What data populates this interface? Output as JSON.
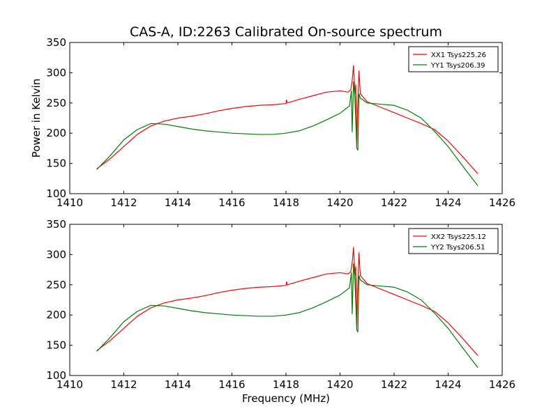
{
  "figure": {
    "title": "CAS-A, ID:2263 Calibrated On-source spectrum"
  },
  "colors": {
    "xx": "#ff0000",
    "yy": "#007f00"
  },
  "chart_data": [
    {
      "type": "line",
      "title": "CAS-A, ID:2263 Calibrated On-source spectrum",
      "xlabel": "",
      "ylabel": "Power in Kelvin",
      "xlim": [
        1410,
        1426
      ],
      "ylim": [
        100,
        350
      ],
      "xticks": [
        "1410",
        "1412",
        "1414",
        "1416",
        "1418",
        "1420",
        "1422",
        "1424",
        "1426"
      ],
      "yticks": [
        "100",
        "150",
        "200",
        "250",
        "300",
        "350"
      ],
      "legend_position": "top-right",
      "grid": false,
      "series": [
        {
          "name": "XX1 Tsys225.26",
          "color": "#ff0000",
          "points": [
            [
              1411.0,
              141
            ],
            [
              1411.5,
              158
            ],
            [
              1412.0,
              178
            ],
            [
              1412.5,
              198
            ],
            [
              1413.0,
              212
            ],
            [
              1413.5,
              220
            ],
            [
              1414.0,
              225
            ],
            [
              1414.5,
              228
            ],
            [
              1415.0,
              232
            ],
            [
              1415.5,
              237
            ],
            [
              1416.0,
              241
            ],
            [
              1416.5,
              244
            ],
            [
              1417.0,
              246
            ],
            [
              1417.5,
              247
            ],
            [
              1418.0,
              249
            ],
            [
              1418.02,
              255
            ],
            [
              1418.05,
              250
            ],
            [
              1418.5,
              256
            ],
            [
              1419.0,
              262
            ],
            [
              1419.5,
              268
            ],
            [
              1420.0,
              270
            ],
            [
              1420.3,
              268
            ],
            [
              1420.4,
              272
            ],
            [
              1420.45,
              287
            ],
            [
              1420.5,
              312
            ],
            [
              1420.55,
              265
            ],
            [
              1420.58,
              280
            ],
            [
              1420.62,
              182
            ],
            [
              1420.65,
              240
            ],
            [
              1420.7,
              303
            ],
            [
              1420.75,
              265
            ],
            [
              1420.85,
              260
            ],
            [
              1421.0,
              252
            ],
            [
              1421.5,
              243
            ],
            [
              1422.0,
              234
            ],
            [
              1422.5,
              225
            ],
            [
              1423.0,
              216
            ],
            [
              1423.5,
              206
            ],
            [
              1424.0,
              187
            ],
            [
              1424.5,
              163
            ],
            [
              1425.1,
              133
            ]
          ]
        },
        {
          "name": "YY1 Tsys206.39",
          "color": "#007f00",
          "points": [
            [
              1411.0,
              140
            ],
            [
              1411.5,
              163
            ],
            [
              1412.0,
              189
            ],
            [
              1412.5,
              206
            ],
            [
              1413.0,
              216
            ],
            [
              1413.5,
              215
            ],
            [
              1414.0,
              211
            ],
            [
              1414.5,
              207
            ],
            [
              1415.0,
              204
            ],
            [
              1415.5,
              202
            ],
            [
              1416.0,
              200
            ],
            [
              1416.5,
              199
            ],
            [
              1417.0,
              198
            ],
            [
              1417.5,
              198
            ],
            [
              1418.0,
              200
            ],
            [
              1418.5,
              204
            ],
            [
              1419.0,
              212
            ],
            [
              1419.5,
              222
            ],
            [
              1420.0,
              233
            ],
            [
              1420.35,
              245
            ],
            [
              1420.42,
              270
            ],
            [
              1420.45,
              202
            ],
            [
              1420.5,
              285
            ],
            [
              1420.55,
              260
            ],
            [
              1420.62,
              175
            ],
            [
              1420.66,
              172
            ],
            [
              1420.7,
              265
            ],
            [
              1420.75,
              258
            ],
            [
              1420.85,
              255
            ],
            [
              1421.0,
              250
            ],
            [
              1421.5,
              248
            ],
            [
              1422.0,
              246
            ],
            [
              1422.5,
              238
            ],
            [
              1423.0,
              225
            ],
            [
              1423.5,
              203
            ],
            [
              1424.0,
              178
            ],
            [
              1424.5,
              148
            ],
            [
              1425.1,
              113
            ]
          ]
        }
      ]
    },
    {
      "type": "line",
      "title": "",
      "xlabel": "Frequency (MHz)",
      "ylabel": "",
      "xlim": [
        1410,
        1426
      ],
      "ylim": [
        100,
        350
      ],
      "xticks": [
        "1410",
        "1412",
        "1414",
        "1416",
        "1418",
        "1420",
        "1422",
        "1424",
        "1426"
      ],
      "yticks": [
        "100",
        "150",
        "200",
        "250",
        "300",
        "350"
      ],
      "legend_position": "top-right",
      "grid": false,
      "series": [
        {
          "name": "XX2 Tsys225.12",
          "color": "#ff0000",
          "points": [
            [
              1411.0,
              141
            ],
            [
              1411.5,
              158
            ],
            [
              1412.0,
              178
            ],
            [
              1412.5,
              198
            ],
            [
              1413.0,
              212
            ],
            [
              1413.5,
              220
            ],
            [
              1414.0,
              225
            ],
            [
              1414.5,
              228
            ],
            [
              1415.0,
              232
            ],
            [
              1415.5,
              237
            ],
            [
              1416.0,
              241
            ],
            [
              1416.5,
              244
            ],
            [
              1417.0,
              246
            ],
            [
              1417.5,
              247
            ],
            [
              1418.0,
              249
            ],
            [
              1418.02,
              255
            ],
            [
              1418.05,
              250
            ],
            [
              1418.5,
              256
            ],
            [
              1419.0,
              262
            ],
            [
              1419.5,
              268
            ],
            [
              1420.0,
              270
            ],
            [
              1420.3,
              268
            ],
            [
              1420.4,
              272
            ],
            [
              1420.45,
              287
            ],
            [
              1420.5,
              312
            ],
            [
              1420.55,
              265
            ],
            [
              1420.58,
              280
            ],
            [
              1420.62,
              182
            ],
            [
              1420.65,
              240
            ],
            [
              1420.7,
              303
            ],
            [
              1420.75,
              265
            ],
            [
              1420.85,
              260
            ],
            [
              1421.0,
              252
            ],
            [
              1421.5,
              243
            ],
            [
              1422.0,
              234
            ],
            [
              1422.5,
              225
            ],
            [
              1423.0,
              216
            ],
            [
              1423.5,
              206
            ],
            [
              1424.0,
              187
            ],
            [
              1424.5,
              163
            ],
            [
              1425.1,
              133
            ]
          ]
        },
        {
          "name": "YY2 Tsys206.51",
          "color": "#007f00",
          "points": [
            [
              1411.0,
              140
            ],
            [
              1411.5,
              163
            ],
            [
              1412.0,
              189
            ],
            [
              1412.5,
              206
            ],
            [
              1413.0,
              216
            ],
            [
              1413.5,
              215
            ],
            [
              1414.0,
              211
            ],
            [
              1414.5,
              207
            ],
            [
              1415.0,
              204
            ],
            [
              1415.5,
              202
            ],
            [
              1416.0,
              200
            ],
            [
              1416.5,
              199
            ],
            [
              1417.0,
              198
            ],
            [
              1417.5,
              198
            ],
            [
              1418.0,
              200
            ],
            [
              1418.5,
              204
            ],
            [
              1419.0,
              212
            ],
            [
              1419.5,
              222
            ],
            [
              1420.0,
              233
            ],
            [
              1420.35,
              245
            ],
            [
              1420.42,
              270
            ],
            [
              1420.45,
              202
            ],
            [
              1420.5,
              285
            ],
            [
              1420.55,
              260
            ],
            [
              1420.62,
              175
            ],
            [
              1420.66,
              172
            ],
            [
              1420.7,
              265
            ],
            [
              1420.75,
              258
            ],
            [
              1420.85,
              255
            ],
            [
              1421.0,
              250
            ],
            [
              1421.5,
              248
            ],
            [
              1422.0,
              246
            ],
            [
              1422.5,
              238
            ],
            [
              1423.0,
              225
            ],
            [
              1423.5,
              203
            ],
            [
              1424.0,
              178
            ],
            [
              1424.5,
              148
            ],
            [
              1425.1,
              113
            ]
          ]
        }
      ]
    }
  ]
}
